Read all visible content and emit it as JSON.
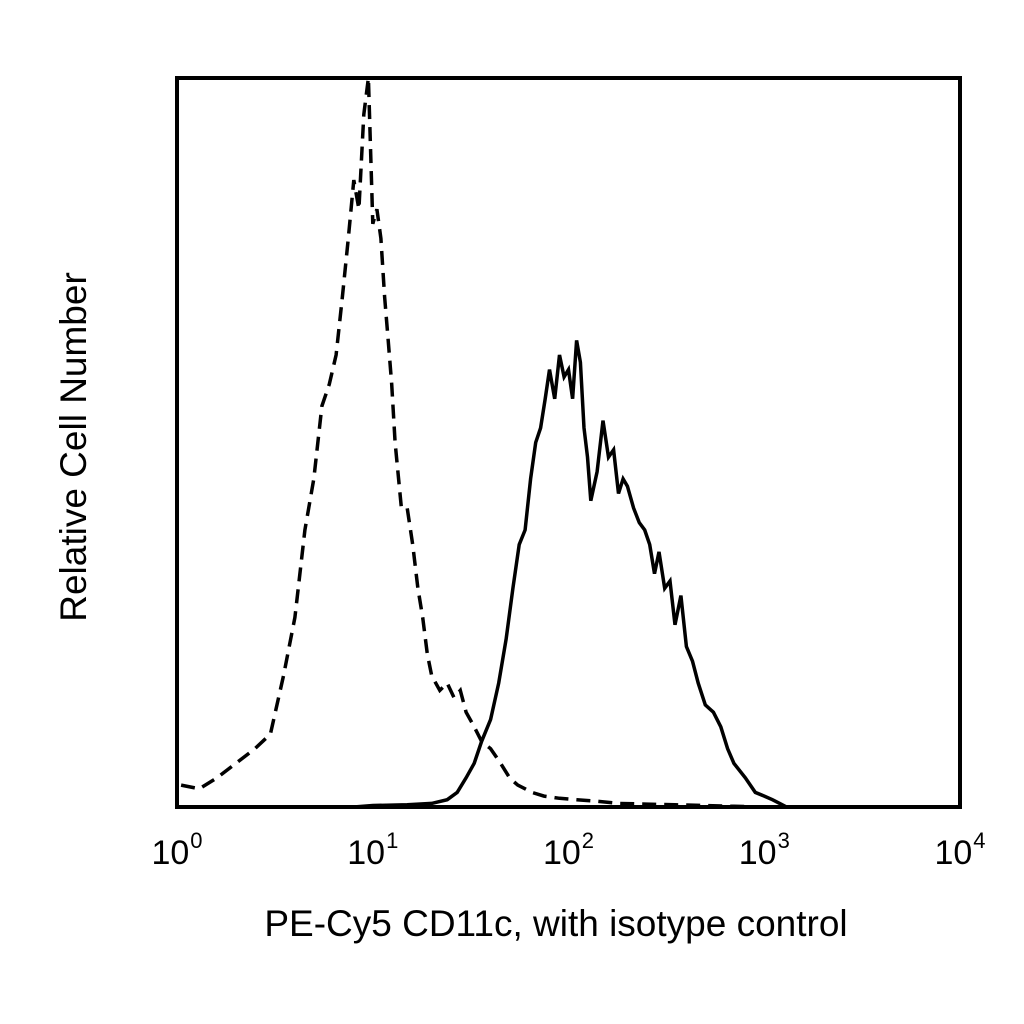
{
  "chart_data": {
    "type": "line",
    "title": "",
    "xlabel": "PE-Cy5 CD11c, with isotype control",
    "ylabel": "Relative Cell Number",
    "x_scale": "log",
    "xlim": [
      1,
      10000
    ],
    "ylim": [
      0,
      100
    ],
    "grid": false,
    "legend": "none",
    "x_ticks": [
      {
        "value": 1,
        "base": "10",
        "exp": "0"
      },
      {
        "value": 10,
        "base": "10",
        "exp": "1"
      },
      {
        "value": 100,
        "base": "10",
        "exp": "2"
      },
      {
        "value": 1000,
        "base": "10",
        "exp": "3"
      },
      {
        "value": 10000,
        "base": "10",
        "exp": "4"
      }
    ],
    "series": [
      {
        "style": "dashed",
        "color": "#000000",
        "x": [
          1.05,
          1.3,
          1.6,
          2.0,
          2.5,
          3.0,
          3.5,
          4.0,
          4.5,
          5.0,
          5.5,
          6.0,
          6.5,
          7.0,
          7.5,
          8.0,
          8.5,
          9.0,
          9.5,
          10.0,
          10.5,
          11.0,
          11.5,
          12.0,
          12.5,
          13.0,
          14.0,
          15.0,
          16.0,
          17.0,
          18.0,
          19.0,
          20.0,
          22.0,
          24.0,
          26.0,
          28.0,
          30.0,
          33.0,
          36.0,
          40.0,
          45.0,
          50.0,
          55.0,
          60.0,
          65.0,
          75.0,
          90.0,
          110.0,
          140.0,
          180.0,
          250.0,
          350.0,
          500.0,
          700.0,
          1000.0,
          1300.0
        ],
        "y": [
          3,
          2.5,
          4,
          6,
          8,
          10,
          18,
          26,
          38,
          45,
          55,
          58,
          62,
          70,
          78,
          86,
          82,
          95,
          100,
          80,
          82,
          78,
          70,
          64,
          58,
          50,
          41,
          41,
          36,
          30,
          26,
          21,
          18,
          16,
          17,
          15,
          16,
          13,
          11,
          9,
          8,
          6,
          4,
          3,
          2.5,
          2,
          1.5,
          1.2,
          1,
          0.8,
          0.5,
          0.4,
          0.3,
          0.2,
          0.1,
          0,
          0
        ]
      },
      {
        "style": "solid",
        "color": "#000000",
        "x": [
          8.0,
          10.0,
          15.0,
          20.0,
          24.0,
          27.0,
          30.0,
          33.0,
          36.0,
          40.0,
          44.0,
          48.0,
          52.0,
          56.0,
          60.0,
          64.0,
          68.0,
          72.0,
          76.0,
          80.0,
          85.0,
          90.0,
          95.0,
          100.0,
          105.0,
          110.0,
          115.0,
          120.0,
          125.0,
          130.0,
          140.0,
          150.0,
          160.0,
          170.0,
          180.0,
          190.0,
          200.0,
          215.0,
          230.0,
          245.0,
          260.0,
          275.0,
          290.0,
          310.0,
          330.0,
          350.0,
          375.0,
          400.0,
          430.0,
          460.0,
          500.0,
          550.0,
          600.0,
          650.0,
          700.0,
          800.0,
          900.0,
          1000.0,
          1100.0,
          1200.0,
          1300.0
        ],
        "y": [
          0,
          0.2,
          0.3,
          0.5,
          1,
          2,
          4,
          6,
          9,
          12,
          17,
          23,
          30,
          36,
          38,
          45,
          50,
          52,
          56,
          60,
          56,
          62,
          59,
          60,
          56,
          64,
          61,
          52,
          48,
          42,
          46,
          53,
          48,
          49,
          43,
          45,
          44,
          41,
          39,
          38,
          36,
          32,
          35,
          30,
          31,
          25,
          29,
          22,
          20,
          17,
          14,
          13,
          11,
          8,
          6,
          4,
          2,
          1.5,
          1,
          0.5,
          0
        ]
      }
    ]
  }
}
